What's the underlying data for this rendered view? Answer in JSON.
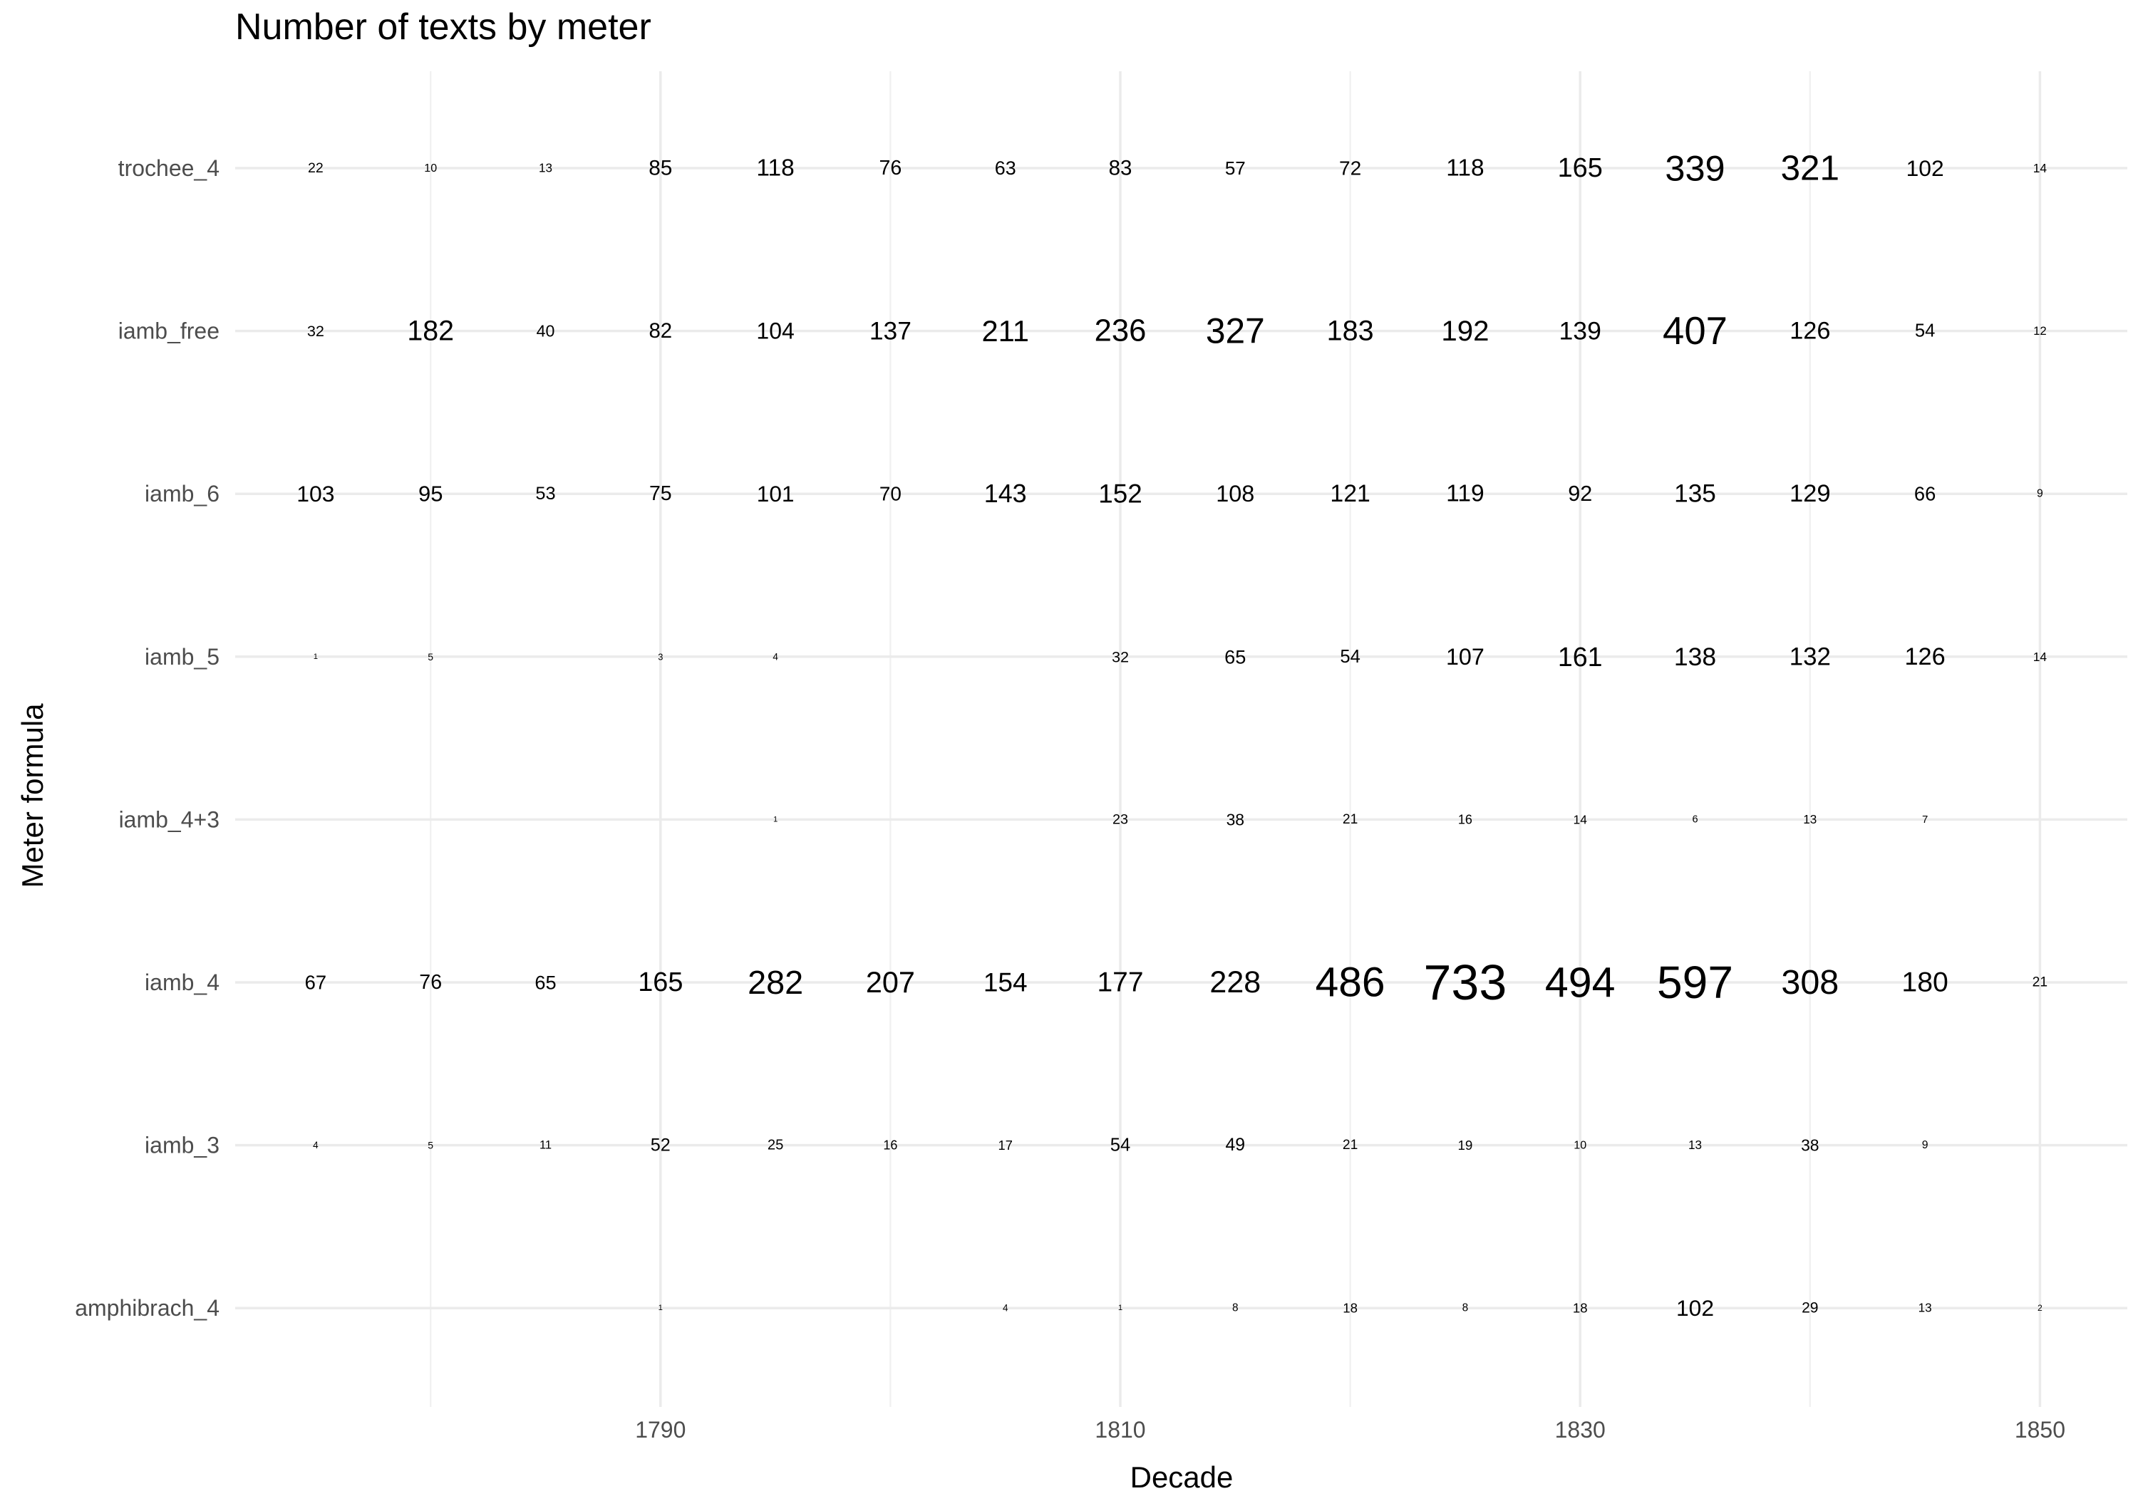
{
  "chart_data": {
    "type": "table",
    "title": "Number of texts by meter",
    "xlabel": "Decade",
    "ylabel": "Meter formula",
    "x": [
      1775,
      1780,
      1785,
      1790,
      1795,
      1800,
      1805,
      1810,
      1815,
      1820,
      1825,
      1830,
      1835,
      1840,
      1845,
      1850
    ],
    "xlim": [
      1771.5,
      1853.8
    ],
    "x_ticks": [
      1790,
      1810,
      1830,
      1850
    ],
    "x_tick_labels": [
      "1790",
      "1810",
      "1830",
      "1850"
    ],
    "categories": [
      "trochee_4",
      "iamb_free",
      "iamb_6",
      "iamb_5",
      "iamb_4+3",
      "iamb_4",
      "iamb_3",
      "amphibrach_4"
    ],
    "series": [
      {
        "name": "trochee_4",
        "values": [
          22,
          10,
          13,
          85,
          118,
          76,
          63,
          83,
          57,
          72,
          118,
          165,
          339,
          321,
          102,
          14
        ]
      },
      {
        "name": "iamb_free",
        "values": [
          32,
          182,
          40,
          82,
          104,
          137,
          211,
          236,
          327,
          183,
          192,
          139,
          407,
          126,
          54,
          12
        ]
      },
      {
        "name": "iamb_6",
        "values": [
          103,
          95,
          53,
          75,
          101,
          70,
          143,
          152,
          108,
          121,
          119,
          92,
          135,
          129,
          66,
          9
        ]
      },
      {
        "name": "iamb_5",
        "values": [
          1,
          5,
          null,
          3,
          4,
          null,
          null,
          32,
          65,
          54,
          107,
          161,
          138,
          132,
          126,
          14
        ]
      },
      {
        "name": "iamb_4+3",
        "values": [
          null,
          null,
          null,
          null,
          1,
          null,
          null,
          23,
          38,
          21,
          16,
          14,
          6,
          13,
          7,
          null
        ]
      },
      {
        "name": "iamb_4",
        "values": [
          67,
          76,
          65,
          165,
          282,
          207,
          154,
          177,
          228,
          486,
          733,
          494,
          597,
          308,
          180,
          21
        ]
      },
      {
        "name": "iamb_3",
        "values": [
          4,
          5,
          11,
          52,
          25,
          16,
          17,
          54,
          49,
          21,
          19,
          10,
          13,
          38,
          9,
          null
        ]
      },
      {
        "name": "amphibrach_4",
        "values": [
          null,
          null,
          null,
          1,
          null,
          null,
          4,
          1,
          8,
          18,
          8,
          18,
          102,
          29,
          13,
          2
        ]
      }
    ],
    "encoding": "text size scales with count",
    "grid": true,
    "legend": "none"
  }
}
